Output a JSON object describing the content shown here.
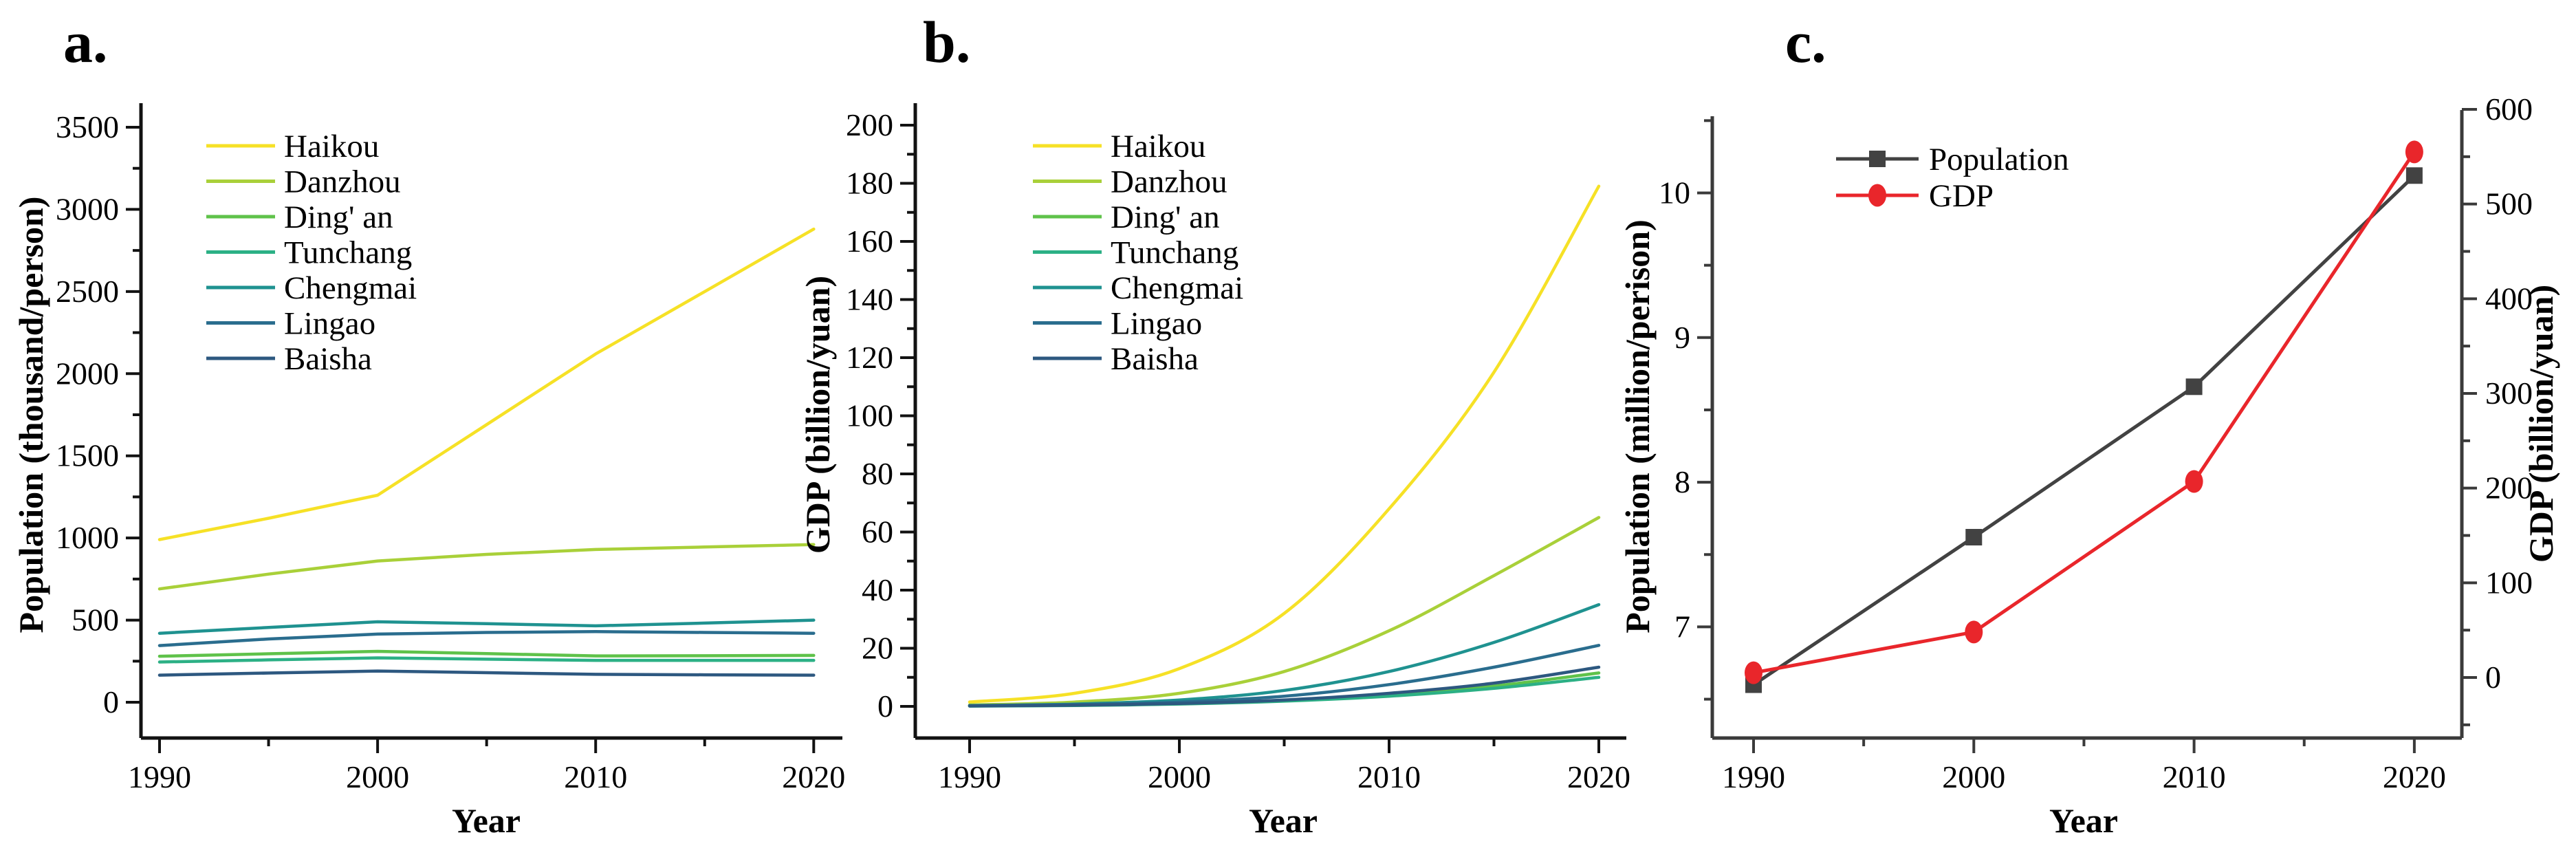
{
  "figure": {
    "background": "#ffffff",
    "panel_labels": {
      "a": "a.",
      "b": "b.",
      "c": "c."
    }
  },
  "chart_data": [
    {
      "id": "a",
      "type": "line",
      "panel_label": "a.",
      "xlabel": "Year",
      "ylabel": "Population (thousand/person)",
      "x": [
        1990,
        1995,
        2000,
        2005,
        2010,
        2015,
        2020
      ],
      "x_major_ticks": [
        1990,
        2000,
        2010,
        2020
      ],
      "x_minor_ticks": [
        1995,
        2005,
        2015
      ],
      "y_major_ticks": [
        0,
        500,
        1000,
        1500,
        2000,
        2500,
        3000,
        3500
      ],
      "y_minor_ticks": [
        250,
        750,
        1250,
        1750,
        2250,
        2750,
        3250
      ],
      "ylim": [
        0,
        3500
      ],
      "grid": false,
      "legend_position": "upper-left",
      "smooth": false,
      "series": [
        {
          "name": "Haikou",
          "color": "#F6E126",
          "values": [
            990,
            1120,
            1260,
            1690,
            2120,
            2500,
            2880
          ]
        },
        {
          "name": "Danzhou",
          "color": "#A9D039",
          "values": [
            690,
            780,
            860,
            900,
            930,
            945,
            960
          ]
        },
        {
          "name": "Ding' an",
          "color": "#5FC24A",
          "values": [
            280,
            295,
            310,
            296,
            282,
            283,
            285
          ]
        },
        {
          "name": "Tunchang",
          "color": "#2CB085",
          "values": [
            245,
            258,
            270,
            262,
            255,
            255,
            255
          ]
        },
        {
          "name": "Chengmai",
          "color": "#1F9290",
          "values": [
            420,
            455,
            490,
            478,
            465,
            482,
            500
          ]
        },
        {
          "name": "Lingao",
          "color": "#2A6D8E",
          "values": [
            345,
            385,
            415,
            425,
            430,
            425,
            420
          ]
        },
        {
          "name": "Baisha",
          "color": "#2D5880",
          "values": [
            165,
            178,
            190,
            180,
            170,
            167,
            165
          ]
        }
      ]
    },
    {
      "id": "b",
      "type": "line",
      "panel_label": "b.",
      "xlabel": "Year",
      "ylabel": "GDP (billion/yuan)",
      "x": [
        1990,
        1995,
        2000,
        2005,
        2010,
        2015,
        2020
      ],
      "x_major_ticks": [
        1990,
        2000,
        2010,
        2020
      ],
      "x_minor_ticks": [
        1995,
        2005,
        2015
      ],
      "y_major_ticks": [
        0,
        20,
        40,
        60,
        80,
        100,
        120,
        140,
        160,
        180,
        200
      ],
      "y_minor_ticks": [
        10,
        30,
        50,
        70,
        90,
        110,
        130,
        150,
        170,
        190
      ],
      "ylim": [
        0,
        200
      ],
      "grid": false,
      "legend_position": "upper-left",
      "smooth": true,
      "series": [
        {
          "name": "Haikou",
          "color": "#F6E126",
          "values": [
            1.5,
            4.5,
            13,
            32,
            68,
            115,
            179
          ]
        },
        {
          "name": "Danzhou",
          "color": "#A9D039",
          "values": [
            0.5,
            1.5,
            4.5,
            12,
            26,
            45,
            65
          ]
        },
        {
          "name": "Ding' an",
          "color": "#5FC24A",
          "values": [
            0.15,
            0.35,
            0.9,
            2.0,
            4.0,
            7.0,
            11.5
          ]
        },
        {
          "name": "Tunchang",
          "color": "#2CB085",
          "values": [
            0.1,
            0.3,
            0.8,
            1.8,
            3.5,
            6.2,
            10
          ]
        },
        {
          "name": "Chengmai",
          "color": "#1F9290",
          "values": [
            0.3,
            0.8,
            2.2,
            5.5,
            12,
            22,
            35
          ]
        },
        {
          "name": "Lingao",
          "color": "#2A6D8E",
          "values": [
            0.2,
            0.6,
            1.5,
            3.5,
            7.5,
            13.5,
            21
          ]
        },
        {
          "name": "Baisha",
          "color": "#2D5880",
          "values": [
            0.15,
            0.4,
            1.0,
            2.2,
            4.5,
            8.0,
            13.5
          ]
        }
      ]
    },
    {
      "id": "c",
      "type": "line",
      "panel_label": "c.",
      "xlabel": "Year",
      "x": [
        1990,
        2000,
        2010,
        2020
      ],
      "x_major_ticks": [
        1990,
        2000,
        2010,
        2020
      ],
      "x_minor_ticks": [
        1995,
        2005,
        2015
      ],
      "left_axis": {
        "label": "Population (million/perison)",
        "major_ticks": [
          7,
          8,
          9,
          10
        ],
        "minor_ticks": [
          6.5,
          7.5,
          8.5,
          9.5,
          10.5
        ],
        "lim": [
          6.23,
          10.53
        ]
      },
      "right_axis": {
        "label": "GDP (billion/yuan)",
        "major_ticks": [
          0,
          100,
          200,
          300,
          400,
          500,
          600
        ],
        "minor_ticks": [
          -50,
          50,
          150,
          250,
          350,
          450,
          550
        ],
        "lim": [
          -55,
          600
        ]
      },
      "grid": false,
      "legend_position": "upper-left",
      "smooth": false,
      "series": [
        {
          "name": "Population",
          "axis": "left",
          "color": "#424242",
          "marker": "square",
          "values": [
            6.6,
            7.62,
            8.66,
            10.12
          ]
        },
        {
          "name": "GDP",
          "axis": "right",
          "color": "#E9262B",
          "marker": "ellipse",
          "values": [
            5,
            48,
            207,
            555
          ]
        }
      ]
    }
  ]
}
